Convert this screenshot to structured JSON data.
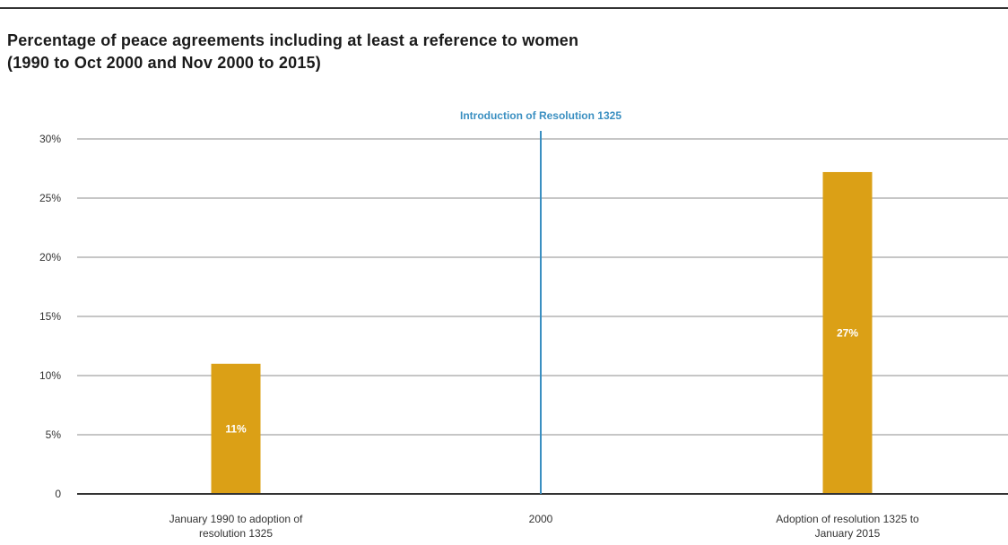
{
  "title_line1": "Percentage of peace agreements including at least a reference to women",
  "title_line2": "(1990 to Oct 2000 and Nov 2000 to 2015)",
  "colors": {
    "bar": "#dba016",
    "marker": "#3a8fc1",
    "grid": "#8c8c8c",
    "axis": "#333333"
  },
  "chart_data": {
    "type": "bar",
    "categories": [
      [
        "January 1990 to adoption of",
        "resolution 1325"
      ],
      [
        "2000"
      ],
      [
        "Adoption of resolution 1325 to",
        "January 2015"
      ]
    ],
    "values": [
      11,
      null,
      27.2
    ],
    "data_labels": [
      "11%",
      "",
      "27%"
    ],
    "y_ticks": [
      0,
      5,
      10,
      15,
      20,
      25,
      30
    ],
    "y_tick_labels": [
      "0",
      "5%",
      "10%",
      "15%",
      "20%",
      "25%",
      "30%"
    ],
    "ylim": [
      0,
      30
    ],
    "grid": true,
    "annotation": {
      "text": "Introduction of Resolution 1325",
      "category_index": 1
    }
  }
}
